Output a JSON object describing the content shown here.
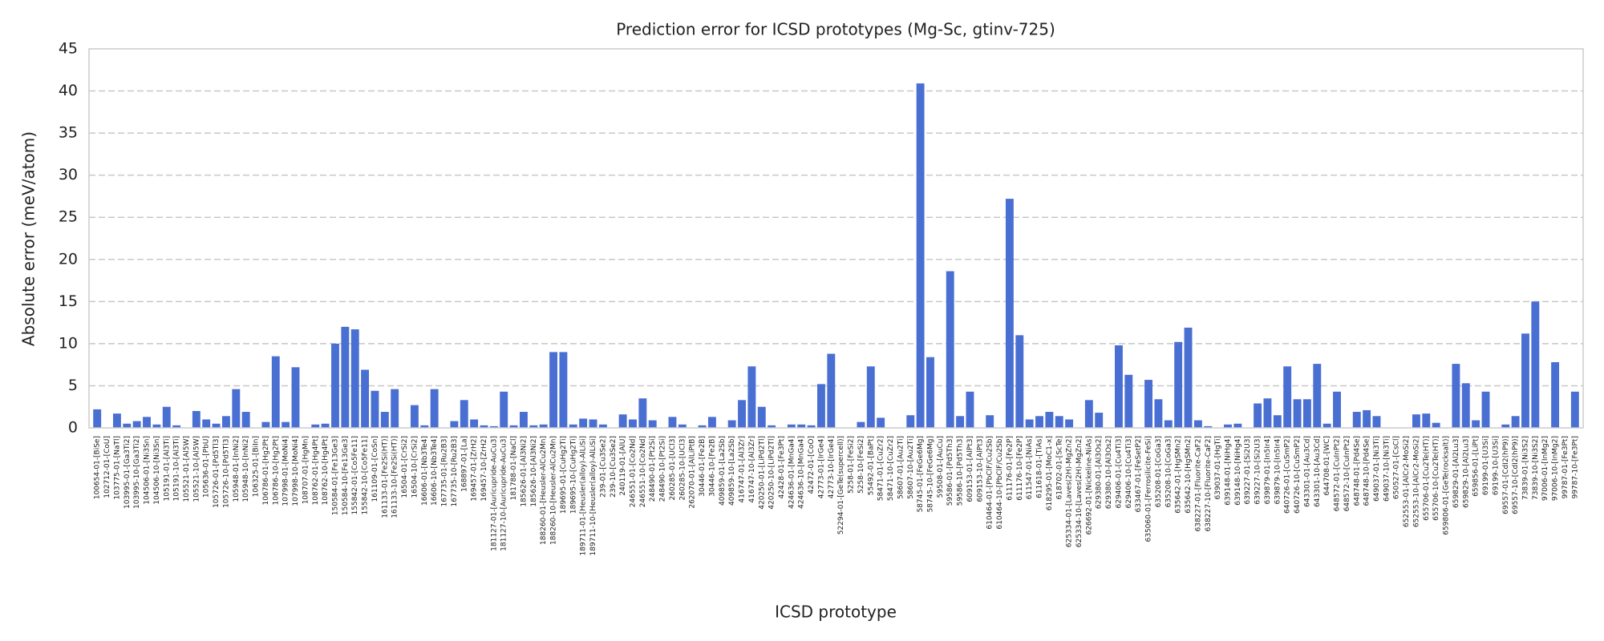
{
  "chart_data": {
    "type": "bar",
    "title": "Prediction error for ICSD prototypes (Mg-Sc, gtinv-725)",
    "x_label": "ICSD prototype",
    "y_label": "Absolute error (meV/atom)",
    "color": "#4a6fd3",
    "grid": true,
    "ylim": [
      0,
      45
    ],
    "yticks": [
      0,
      5,
      10,
      15,
      20,
      25,
      30,
      35,
      40,
      45
    ],
    "categories": [
      "100654-01-[BiSe]",
      "102712-01-[CoU]",
      "103775-01-[NaTl]",
      "103995-01-[Ga3Ti2]",
      "103995-10-[Ga3Ti2]",
      "104506-01-[Ni3Sn]",
      "104506-10-[Ni3Sn]",
      "105191-01-[Al3Ti]",
      "105191-10-[Al3Ti]",
      "105521-01-[Al5W]",
      "105521-10-[Al5W]",
      "105636-01-[PbU]",
      "105726-01-[Pd5Tl3]",
      "105726-10-[Pd5Tl3]",
      "105948-01-[InNi2]",
      "105948-10-[InNi2]",
      "106325-01-[BiIn]",
      "106786-01-[Hg2Pt]",
      "106786-10-[Hg2Pt]",
      "107998-01-[MoNi4]",
      "107998-10-[MoNi4]",
      "108707-01-[HgMn]",
      "108762-01-[Hg4Pt]",
      "108762-10-[Hg4Pt]",
      "150584-01-[Fe13Ge3]",
      "150584-10-[Fe13Ge3]",
      "155842-01-[Co5Fe11]",
      "155842-10-[Co5Fe11]",
      "161109-01-[CoSn]",
      "161133-01-[Fe2Si(HT)]",
      "161133-10-[Fe2Si(HT)]",
      "16504-01-[CrSi2]",
      "16504-10-[CrSi2]",
      "16606-01-[Nb3Te4]",
      "16606-10-[Nb3Te4]",
      "167735-01-[Ru2B3]",
      "167735-10-[Ru2B3]",
      "168897-01-[La]",
      "169457-01-[ZrH2]",
      "169457-10-[ZrH2]",
      "181127-01-[Auricupride-AuCu3]",
      "181127-10-[Auricupride-AuCu3]",
      "181788-01-[NaCl]",
      "185626-01-[Al3Ni2]",
      "185626-10-[Al3Ni2]",
      "188260-01-[Heusler-AlCu2Mn]",
      "188260-10-[Heusler-AlCu2Mn]",
      "189695-01-[CuHg2Ti]",
      "189695-10-[CuHg2Ti]",
      "189711-01-[Heusler(alloy)-AlLiSi]",
      "189711-10-[Heusler(alloy)-AlLiSi]",
      "239-01-[Cu3Se2]",
      "239-10-[Cu3Se2]",
      "240119-01-[AlU]",
      "246551-01-[Co2Nd]",
      "246551-10-[Co2Nd]",
      "248490-01-[Pt2Si]",
      "248490-10-[Pt2Si]",
      "260285-01-[UCl3]",
      "260285-10-[UCl3]",
      "262070-01-[AlLiPtB]",
      "30446-01-[Fe2B]",
      "30446-10-[Fe2B]",
      "409859-01-[La2Sb]",
      "409859-10-[La2Sb]",
      "416747-01-[Al3Zr]",
      "416747-10-[Al3Zr]",
      "420250-01-[LiPd2Tl]",
      "420250-10-[LiPd2Tl]",
      "42428-01-[Fe3Pt]",
      "424636-01-[MnGa4]",
      "424636-10-[MnGa4]",
      "42472-01-[CoO]",
      "42773-01-[IrGe4]",
      "42773-10-[IrGe4]",
      "52294-01-[GeTe(supercell)]",
      "5258-01-[FeSi2]",
      "5258-10-[FeSi2]",
      "55492-01-[BaPt]",
      "58471-01-[CuZr2]",
      "58471-10-[CuZr2]",
      "58607-01-[Au2Ti]",
      "58607-10-[Au2Ti]",
      "58745-01-[FeGe6Mg]",
      "58745-10-[FeGe6Mg]",
      "59508-01-[AuCu]",
      "59586-01-[Pd5Th3]",
      "59586-10-[Pd5Th3]",
      "609153-01-[AlPt3]",
      "609153-10-[AlPt3]",
      "610464-01-[PbClF/Cu2Sb]",
      "610464-10-[PbClF/Cu2Sb]",
      "611176-01-[Fe2P]",
      "611176-10-[Fe2P]",
      "611547-01-[NiAs]",
      "611618-01-[TiAs]",
      "618295-01-[MoC1-x]",
      "618702-01-[ScTe]",
      "625334-01-[Laves(2H)-MgZn2]",
      "625334-10-[Laves(2H)-MgZn2]",
      "626692-01-[Nickeline-NiAs]",
      "629380-01-[Al3Os2]",
      "629380-10-[Al3Os2]",
      "629406-01-[Cu4Ti3]",
      "629406-10-[Cu4Ti3]",
      "633467-01-[FeSetP2]",
      "635060-01-[Ferrosilicite-FeSi]",
      "635208-01-[CoGa3]",
      "635208-10-[CoGa3]",
      "635642-01-[HgSMn2]",
      "635642-10-[HgSMn2]",
      "638227-01-[Fluorite-CaF2]",
      "638227-10-[Fluorite-CaF2]",
      "639037-01-[HgTi]",
      "639148-01-[NiHg4]",
      "639148-10-[NiHg4]",
      "639227-01-[Si2U3]",
      "639227-10-[Si2U3]",
      "639879-01-[In5Ir4]",
      "639879-10-[In5Ir4]",
      "640726-01-[CuSmP2]",
      "640726-10-[CuSmP2]",
      "643301-01-[Au3Cd]",
      "643301-10-[Au3Cd]",
      "644708-01-[WC]",
      "648572-01-[CuInPt2]",
      "648572-10-[CuInPt2]",
      "648748-01-[Pd4Se]",
      "648748-10-[Pd4Se]",
      "649037-01-[Ni3Ti]",
      "649037-10-[Ni3Ti]",
      "650527-01-[CsCl]",
      "652553-01-[AlCr2-MoSi2]",
      "652553-10-[AlCr2-MoSi2]",
      "655706-01-[Cu2Te(HT)]",
      "655706-10-[Cu2Te(HT)]",
      "659806-01-[GeTe(rocksalt)]",
      "659829-01-[Al2Lu3]",
      "659829-10-[Al2Lu3]",
      "659856-01-[LiPt]",
      "69199-01-[U3Si]",
      "69199-10-[U3Si]",
      "69557-01-[CdI2(hP9)]",
      "69557-10-[CdI2(hP9)]",
      "73839-01-[Ni3S2]",
      "73839-10-[Ni3S2]",
      "97006-01-[InMg2]",
      "97006-10-[InMg2]",
      "99787-01-[Fe3Pt]",
      "99787-10-[Fe3Pt]"
    ],
    "values": [
      2.2,
      0,
      1.7,
      0.5,
      0.8,
      1.3,
      0.4,
      2.5,
      0.3,
      0,
      2.0,
      1.0,
      0.5,
      1.4,
      4.6,
      1.9,
      0,
      0.7,
      8.5,
      0.7,
      7.2,
      0,
      0.4,
      0.5,
      10.0,
      12.0,
      11.7,
      6.9,
      4.4,
      1.9,
      4.6,
      0,
      2.7,
      0.3,
      4.6,
      0,
      0.8,
      3.3,
      1.0,
      0.3,
      0.2,
      4.3,
      0.3,
      1.9,
      0.3,
      0.4,
      9.0,
      9.0,
      0.4,
      1.1,
      1.0,
      0.4,
      0,
      1.6,
      1.0,
      3.5,
      0.9,
      0,
      1.3,
      0.4,
      0,
      0.3,
      1.3,
      0,
      0.9,
      3.3,
      7.3,
      2.5,
      0.3,
      0,
      0.4,
      0.4,
      0.3,
      5.2,
      8.8,
      0,
      0,
      0.7,
      7.3,
      1.2,
      0,
      0,
      1.5,
      40.9,
      8.4,
      0,
      18.6,
      1.4,
      4.3,
      0,
      1.5,
      0,
      27.2,
      11.0,
      1.0,
      1.4,
      1.9,
      1.4,
      1.0,
      0,
      3.3,
      1.8,
      0,
      9.8,
      6.3,
      0,
      5.7,
      3.4,
      0.9,
      10.2,
      11.9,
      0.9,
      0.2,
      0,
      0.4,
      0.5,
      0,
      2.9,
      3.5,
      1.5,
      7.3,
      3.4,
      3.4,
      7.6,
      0.5,
      4.3,
      0,
      1.9,
      2.1,
      1.4,
      0,
      0,
      0,
      1.6,
      1.7,
      0.6,
      0,
      7.6,
      5.3,
      0.9,
      4.3,
      0,
      0.4,
      1.4,
      11.2,
      15.0,
      0,
      7.8,
      0,
      4.3
    ]
  }
}
